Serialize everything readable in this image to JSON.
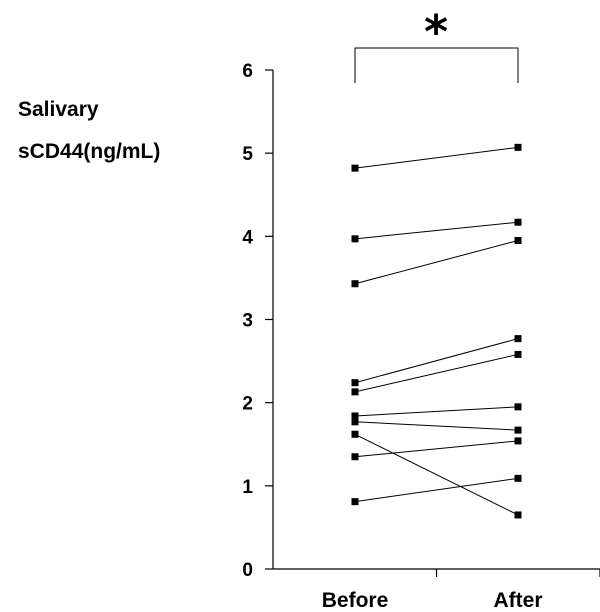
{
  "chart_data": {
    "type": "line",
    "title": "",
    "ylabel": "Salivary sCD44(ng/mL)",
    "ylabel_lines": [
      "Salivary",
      "sCD44(ng/mL)"
    ],
    "xlabel": "",
    "categories": [
      "Before",
      "After"
    ],
    "ylim": [
      0,
      6
    ],
    "yticks": [
      "0",
      "1",
      "2",
      "3",
      "4",
      "5",
      "6"
    ],
    "grid": false,
    "legend": "none",
    "significance": "*",
    "series": [
      {
        "values": [
          4.82,
          5.07
        ]
      },
      {
        "values": [
          3.97,
          4.17
        ]
      },
      {
        "values": [
          3.43,
          3.95
        ]
      },
      {
        "values": [
          2.24,
          2.77
        ]
      },
      {
        "values": [
          2.13,
          2.58
        ]
      },
      {
        "values": [
          1.84,
          1.95
        ]
      },
      {
        "values": [
          1.77,
          1.67
        ]
      },
      {
        "values": [
          1.35,
          1.54
        ]
      },
      {
        "values": [
          0.81,
          1.09
        ]
      },
      {
        "values": [
          1.62,
          0.65
        ]
      }
    ]
  }
}
